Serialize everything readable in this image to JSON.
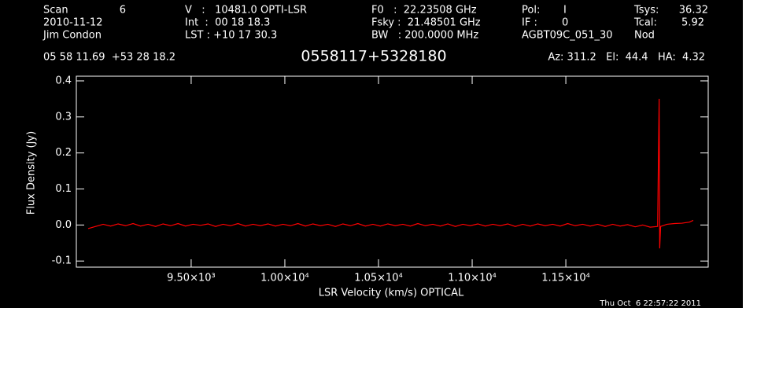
{
  "header": {
    "scan_label": "Scan",
    "scan": "6",
    "date": "2010-11-12",
    "observer": "Jim Condon",
    "velocity": "V   :   10481.0 OPTI-LSR",
    "int": "Int  :  00 18 18.3",
    "lst": "LST : +10 17 30.3",
    "f0": "F0   :  22.23508 GHz",
    "fsky": "Fsky :  21.48501 GHz",
    "bw": "BW   : 200.0000 MHz",
    "pol_label": "Pol:",
    "pol": "I",
    "if_label": "IF :",
    "if": "0",
    "project": "AGBT09C_051_30",
    "tsys_label": "Tsys:",
    "tsys": "36.32",
    "tcal_label": "Tcal:",
    "tcal": "5.92",
    "proc": "Nod",
    "coords": "05 58 11.69  +53 28 18.2",
    "pointing": "Az: 311.2   El:  44.4   HA:  4.32",
    "timestamp": "Thu Oct  6 22:57:22 2011"
  },
  "chart_data": {
    "type": "line",
    "title": "0558117+5328180",
    "x_label": "LSR Velocity (km/s) OPTICAL",
    "y_label": "Flux Density (Jy)",
    "xlim": [
      8887,
      12260
    ],
    "ylim": [
      -0.117,
      0.413
    ],
    "xticks": [
      {
        "value": 9500,
        "label": "9.50×10³"
      },
      {
        "value": 10000,
        "label": "1.00×10⁴"
      },
      {
        "value": 10500,
        "label": "1.05×10⁴"
      },
      {
        "value": 11000,
        "label": "1.10×10⁴"
      },
      {
        "value": 11500,
        "label": "1.15×10⁴"
      }
    ],
    "yticks": [
      -0.1,
      {
        "value": 0,
        "label": "0.0"
      },
      0.1,
      0.2,
      0.3,
      0.4
    ],
    "series": [
      {
        "color": "#ff0000",
        "x": [
          8950,
          8990,
          9030,
          9070,
          9110,
          9150,
          9190,
          9230,
          9270,
          9310,
          9350,
          9390,
          9430,
          9470,
          9510,
          9550,
          9590,
          9630,
          9670,
          9710,
          9750,
          9790,
          9830,
          9870,
          9910,
          9950,
          9990,
          10030,
          10070,
          10110,
          10150,
          10190,
          10230,
          10270,
          10310,
          10350,
          10390,
          10430,
          10470,
          10510,
          10550,
          10590,
          10630,
          10670,
          10710,
          10750,
          10790,
          10830,
          10870,
          10910,
          10950,
          10990,
          11030,
          11070,
          11110,
          11150,
          11190,
          11230,
          11270,
          11310,
          11350,
          11390,
          11430,
          11470,
          11510,
          11550,
          11590,
          11630,
          11670,
          11710,
          11750,
          11790,
          11830,
          11870,
          11910,
          11950,
          11990,
          11998,
          12001,
          12006,
          12040,
          12080,
          12120,
          12160,
          12180
        ],
        "values": [
          -0.01,
          -0.004,
          0.002,
          -0.003,
          0.003,
          -0.002,
          0.004,
          -0.003,
          0.002,
          -0.004,
          0.003,
          -0.002,
          0.004,
          -0.003,
          0.002,
          -0.001,
          0.003,
          -0.004,
          0.002,
          -0.002,
          0.004,
          -0.003,
          0.002,
          -0.002,
          0.003,
          -0.003,
          0.002,
          -0.002,
          0.004,
          -0.003,
          0.003,
          -0.002,
          0.002,
          -0.004,
          0.003,
          -0.002,
          0.004,
          -0.003,
          0.002,
          -0.003,
          0.003,
          -0.002,
          0.002,
          -0.003,
          0.004,
          -0.002,
          0.002,
          -0.003,
          0.003,
          -0.004,
          0.002,
          -0.002,
          0.003,
          -0.003,
          0.002,
          -0.002,
          0.003,
          -0.004,
          0.002,
          -0.003,
          0.003,
          -0.002,
          0.002,
          -0.003,
          0.004,
          -0.002,
          0.002,
          -0.003,
          0.002,
          -0.004,
          0.002,
          -0.003,
          0.001,
          -0.005,
          0.0,
          -0.006,
          -0.004,
          0.35,
          -0.065,
          -0.004,
          0.002,
          0.004,
          0.005,
          0.008,
          0.013
        ]
      }
    ]
  }
}
